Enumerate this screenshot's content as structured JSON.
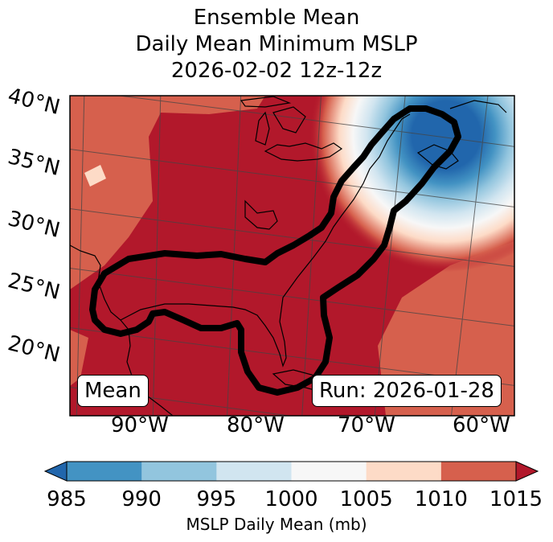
{
  "chart_data": {
    "type": "heatmap",
    "title_lines": [
      "Ensemble Mean",
      "Daily Mean Minimum MSLP",
      "2026-02-02 12z-12z"
    ],
    "lat_ticks": [
      "40°N",
      "35°N",
      "30°N",
      "25°N",
      "20°N"
    ],
    "lon_ticks": [
      "90°W",
      "80°W",
      "70°W",
      "60°W"
    ],
    "extent": {
      "lon": [
        -97,
        -59
      ],
      "lat": [
        17,
        41
      ]
    },
    "left_box": "Mean",
    "right_box": "Run: 2026-01-28",
    "colorbar": {
      "label": "MSLP Daily Mean (mb)",
      "ticks": [
        "985",
        "990",
        "995",
        "1000",
        "1005",
        "1010",
        "1015"
      ],
      "bins": [
        {
          "range": [
            980,
            985
          ],
          "color": "#2166ac"
        },
        {
          "range": [
            985,
            990
          ],
          "color": "#4393c3"
        },
        {
          "range": [
            990,
            995
          ],
          "color": "#92c5de"
        },
        {
          "range": [
            995,
            1000
          ],
          "color": "#d1e5f0"
        },
        {
          "range": [
            1000,
            1005
          ],
          "color": "#f7f7f7"
        },
        {
          "range": [
            1005,
            1010
          ],
          "color": "#fddbc7"
        },
        {
          "range": [
            1010,
            1015
          ],
          "color": "#d6604d"
        },
        {
          "range": [
            1015,
            1020
          ],
          "color": "#b2182b"
        }
      ],
      "extend": "both"
    },
    "low_center": {
      "lon": -63,
      "lat": 39,
      "approx_mb": 982
    }
  }
}
